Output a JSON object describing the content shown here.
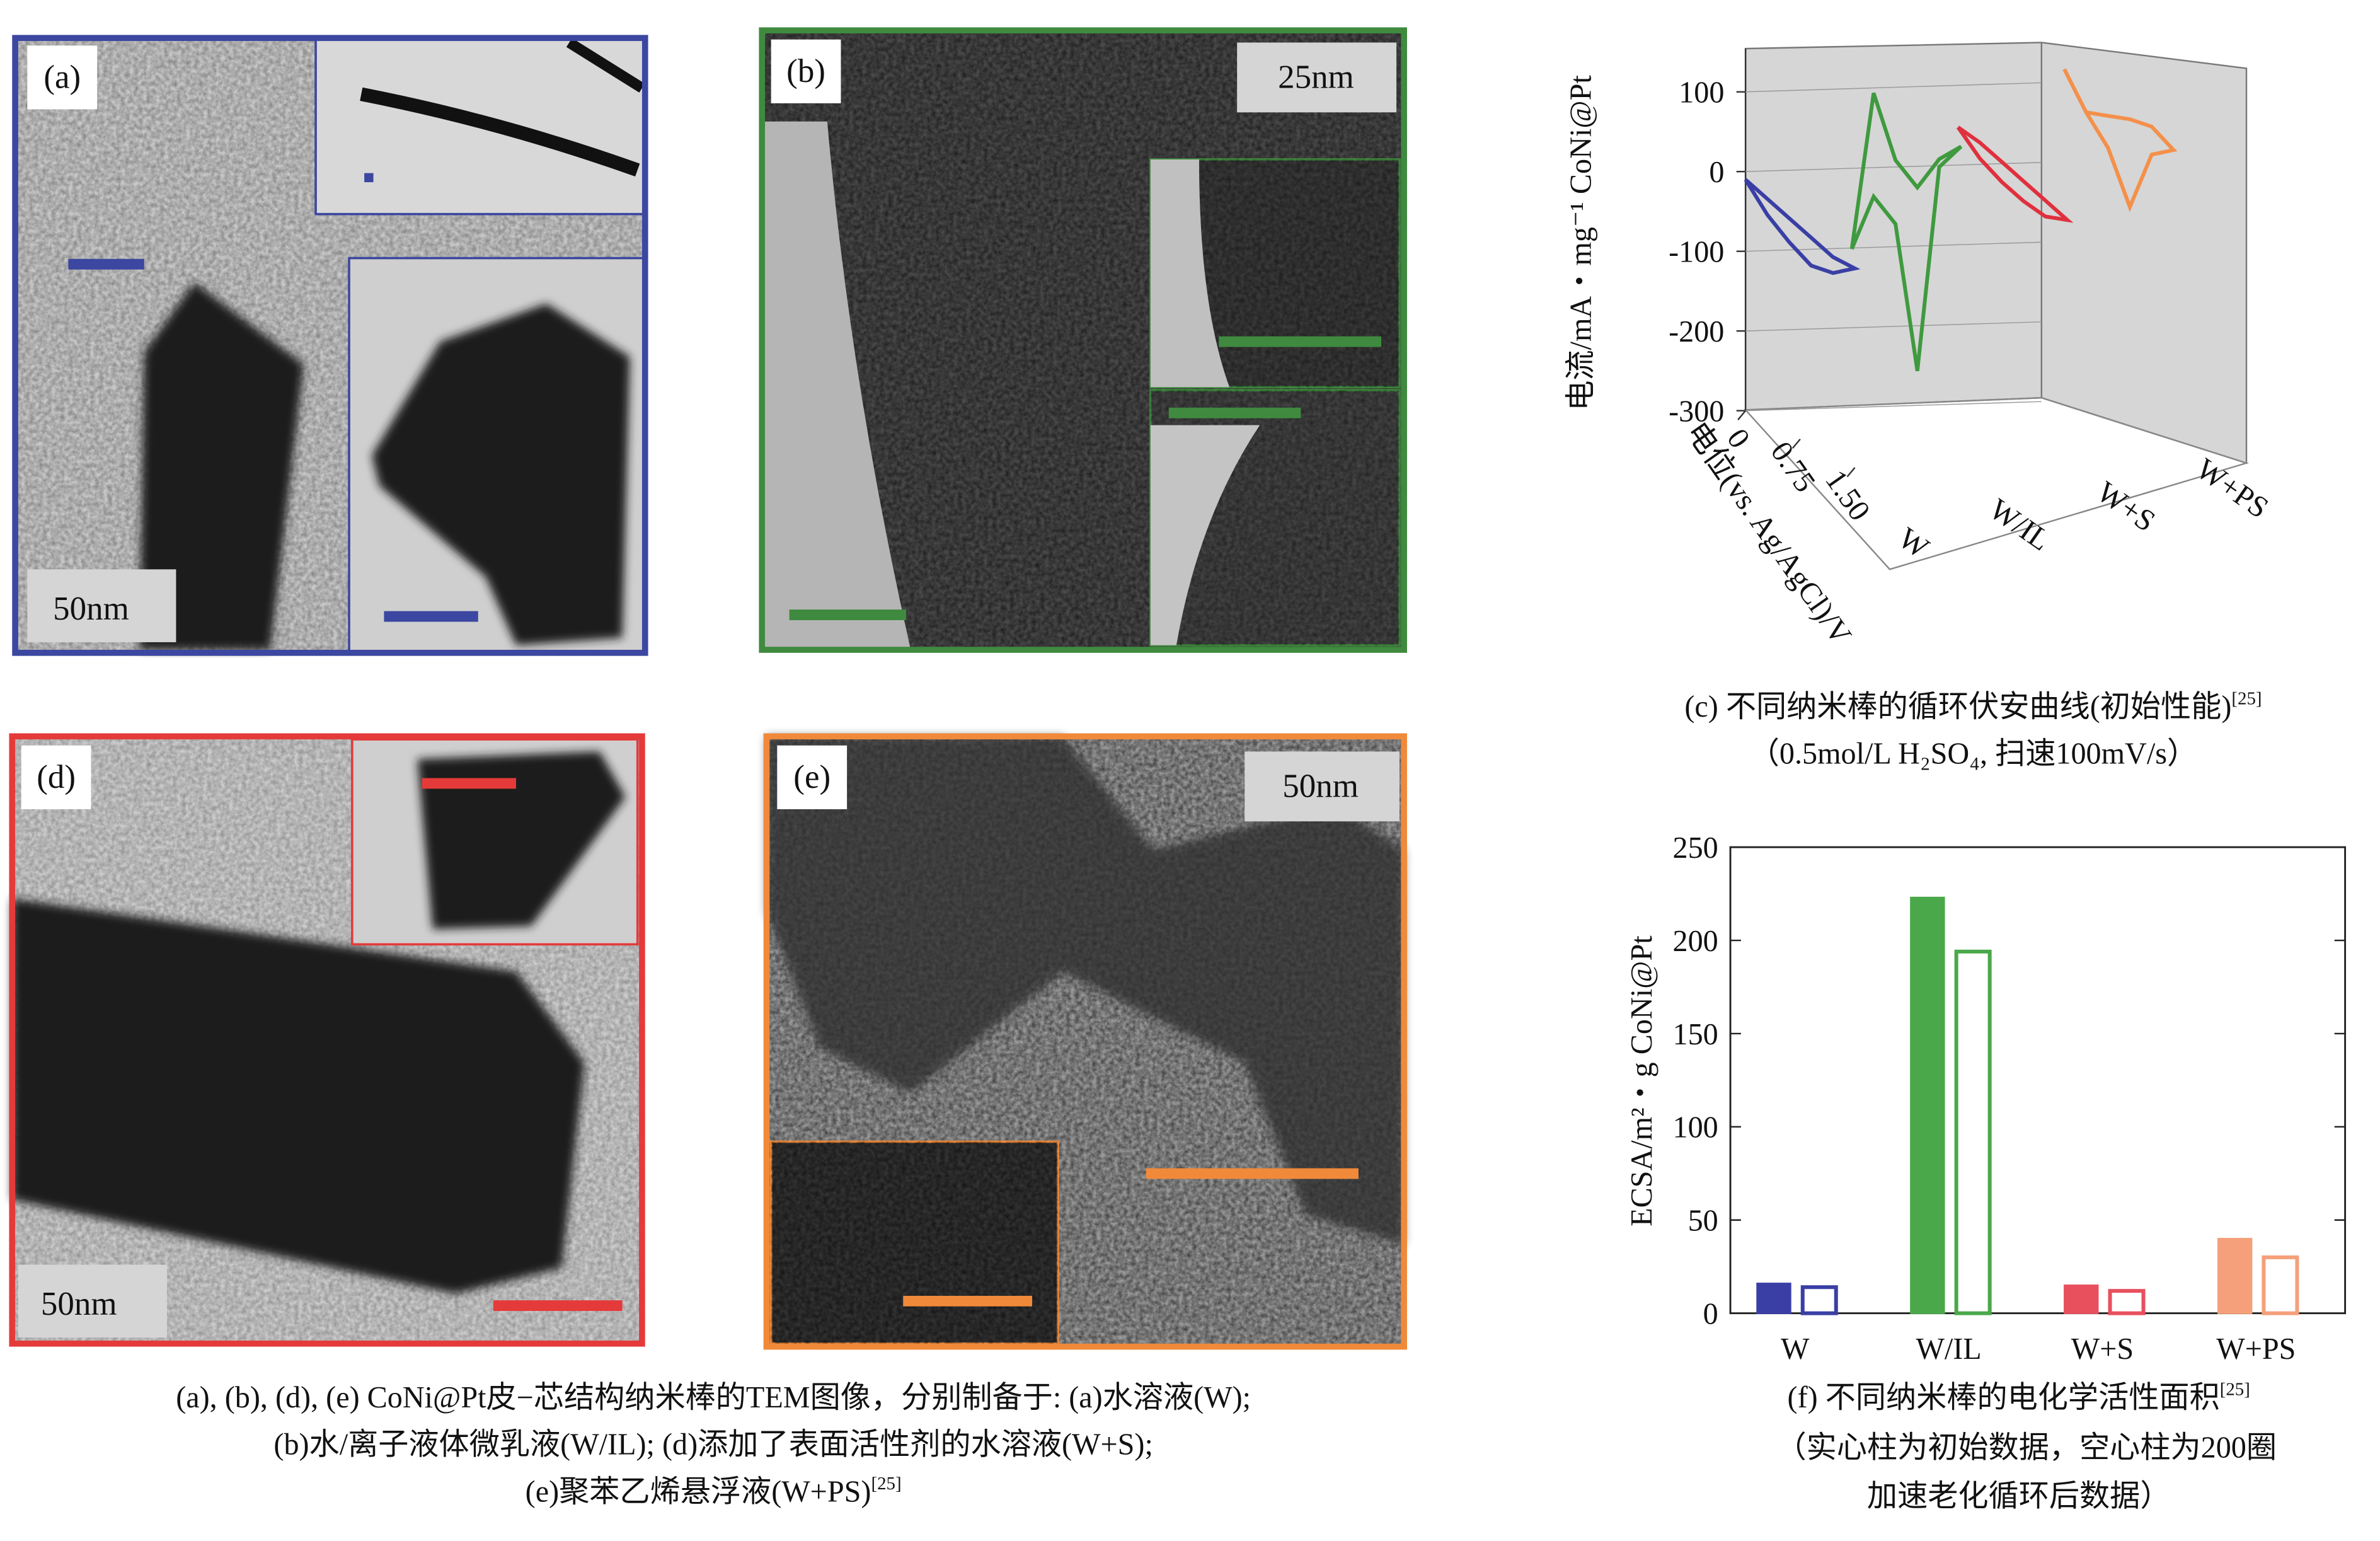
{
  "panels": [
    {
      "label": "(a)",
      "scale": "50nm"
    },
    {
      "label": "(b)",
      "scale": "25nm"
    },
    {
      "label": "(d)",
      "scale": "50nm"
    },
    {
      "label": "(e)",
      "scale": "50nm"
    }
  ],
  "tem_caption": {
    "lines": [
      "(a), (b), (d), (e) CoNi@Pt皮−芯结构纳米棒的TEM图像，分别制备于: (a)水溶液(W);",
      "(b)水/离子液体微乳液(W/IL); (d)添加了表面活性剂的水溶液(W+S);",
      "(e)聚苯乙烯悬浮液(W+PS)"
    ],
    "ref": "[25]"
  },
  "chart_data": [
    {
      "type": "line3d",
      "title": "(c) 不同纳米棒的循环伏安曲线(初始性能)",
      "title_ref": "[25]",
      "subtitle": "（0.5mol/L H₂SO₄, 扫速100mV/s）",
      "ylabel": "电流/mA・mg⁻¹ CoNi@Pt",
      "xlabel": "电位(vs. Ag/AgCl)/V",
      "xlim": [
        0,
        1.5
      ],
      "xticks": [
        0,
        0.75,
        {
          "value": 1.5,
          "label": "1.50"
        }
      ],
      "ylim": [
        -300,
        150
      ],
      "yticks": [
        -300,
        -200,
        -100,
        0,
        100
      ],
      "x": [
        0,
        0.3,
        0.6,
        0.9,
        1.2,
        1.5,
        1.2,
        0.9,
        0.6,
        0.3,
        0
      ],
      "series": [
        {
          "name": "W",
          "color": "#3a3fa5",
          "values": [
            -10,
            -20,
            -30,
            -40,
            -50,
            -50,
            -70,
            -75,
            -60,
            -40,
            -10
          ]
        },
        {
          "name": "W/IL",
          "color": "#3f9a3f",
          "values": [
            -120,
            90,
            20,
            0,
            50,
            80,
            40,
            -230,
            -60,
            -40,
            -120
          ]
        },
        {
          "name": "W+S",
          "color": "#e0303e",
          "values": [
            10,
            5,
            -5,
            -15,
            -25,
            -35,
            -45,
            -40,
            -30,
            -15,
            10
          ]
        },
        {
          "name": "W+PS",
          "color": "#f4904a",
          "values": [
            60,
            20,
            30,
            40,
            45,
            30,
            10,
            -70,
            -10,
            20,
            60
          ]
        }
      ]
    },
    {
      "type": "bar",
      "title": "(f) 不同纳米棒的电化学活性面积",
      "title_ref": "[25]",
      "subtitle": [
        "（实心柱为初始数据，空心柱为200圈",
        "加速老化循环后数据）"
      ],
      "ylabel": "ECSA/m²・g CoNi@Pt",
      "categories": [
        "W",
        "W/IL",
        "W+S",
        "W+PS"
      ],
      "colors": [
        "#3a3fa5",
        "#4aa84a",
        "#e8505e",
        "#f5a07a"
      ],
      "ylim": [
        0,
        250
      ],
      "yticks": [
        0,
        50,
        100,
        150,
        200,
        250
      ],
      "series": [
        {
          "style": "solid",
          "values": [
            16,
            223,
            15,
            40
          ]
        },
        {
          "style": "hollow",
          "values": [
            14,
            194,
            12,
            30
          ]
        }
      ]
    }
  ]
}
